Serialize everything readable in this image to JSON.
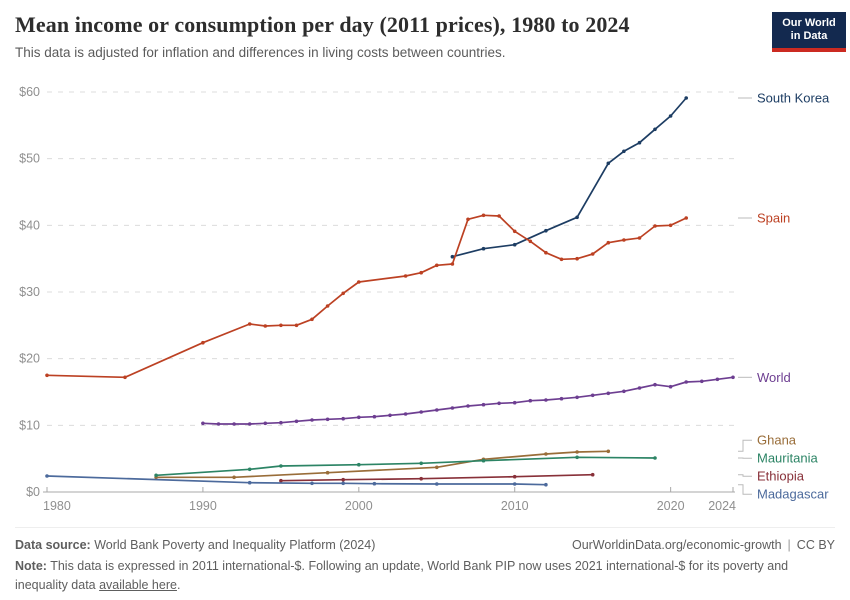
{
  "header": {
    "title": "Mean income or consumption per day (2011 prices), 1980 to 2024",
    "subtitle": "This data is adjusted for inflation and differences in living costs between countries.",
    "logo": {
      "line1": "Our World",
      "line2": "in Data",
      "bg_color": "#13294f",
      "stripe_color": "#cb2a21"
    }
  },
  "chart_data": {
    "type": "line",
    "title": "Mean income or consumption per day (2011 prices), 1980 to 2024",
    "xlabel": "",
    "ylabel": "",
    "xlim": [
      1980,
      2024
    ],
    "ylim": [
      0,
      60
    ],
    "x_ticks": [
      1980,
      1990,
      2000,
      2010,
      2020,
      2024
    ],
    "y_ticks": [
      0,
      10,
      20,
      30,
      40,
      50,
      60
    ],
    "y_tick_prefix": "$",
    "grid": "horizontal-dashed",
    "legend_position": "right-end-labels",
    "axis_color": "#a8a8a8",
    "grid_color": "#dcdcdc",
    "tick_label_color": "#8f8f8f",
    "series": [
      {
        "name": "South Korea",
        "color": "#1d3d63",
        "points": [
          [
            2006,
            35.3
          ],
          [
            2008,
            36.5
          ],
          [
            2010,
            37.1
          ],
          [
            2012,
            39.2
          ],
          [
            2014,
            41.2
          ],
          [
            2016,
            49.3
          ],
          [
            2017,
            51.1
          ],
          [
            2018,
            52.4
          ],
          [
            2019,
            54.4
          ],
          [
            2020,
            56.4
          ],
          [
            2021,
            59.1
          ]
        ]
      },
      {
        "name": "Spain",
        "color": "#bc4123",
        "points": [
          [
            1980,
            17.5
          ],
          [
            1985,
            17.2
          ],
          [
            1990,
            22.4
          ],
          [
            1993,
            25.2
          ],
          [
            1994,
            24.9
          ],
          [
            1995,
            25.0
          ],
          [
            1996,
            25.0
          ],
          [
            1997,
            25.9
          ],
          [
            1998,
            27.9
          ],
          [
            1999,
            29.8
          ],
          [
            2000,
            31.5
          ],
          [
            2003,
            32.4
          ],
          [
            2004,
            32.9
          ],
          [
            2005,
            34.0
          ],
          [
            2006,
            34.2
          ],
          [
            2007,
            40.9
          ],
          [
            2008,
            41.5
          ],
          [
            2009,
            41.4
          ],
          [
            2010,
            39.1
          ],
          [
            2011,
            37.6
          ],
          [
            2012,
            35.9
          ],
          [
            2013,
            34.9
          ],
          [
            2014,
            35.0
          ],
          [
            2015,
            35.7
          ],
          [
            2016,
            37.4
          ],
          [
            2017,
            37.8
          ],
          [
            2018,
            38.1
          ],
          [
            2019,
            39.9
          ],
          [
            2020,
            40.0
          ],
          [
            2021,
            41.1
          ]
        ]
      },
      {
        "name": "World",
        "color": "#6d3e91",
        "points": [
          [
            1990,
            10.3
          ],
          [
            1991,
            10.2
          ],
          [
            1992,
            10.2
          ],
          [
            1993,
            10.2
          ],
          [
            1994,
            10.3
          ],
          [
            1995,
            10.4
          ],
          [
            1996,
            10.6
          ],
          [
            1997,
            10.8
          ],
          [
            1998,
            10.9
          ],
          [
            1999,
            11.0
          ],
          [
            2000,
            11.2
          ],
          [
            2001,
            11.3
          ],
          [
            2002,
            11.5
          ],
          [
            2003,
            11.7
          ],
          [
            2004,
            12.0
          ],
          [
            2005,
            12.3
          ],
          [
            2006,
            12.6
          ],
          [
            2007,
            12.9
          ],
          [
            2008,
            13.1
          ],
          [
            2009,
            13.3
          ],
          [
            2010,
            13.4
          ],
          [
            2011,
            13.7
          ],
          [
            2012,
            13.8
          ],
          [
            2013,
            14.0
          ],
          [
            2014,
            14.2
          ],
          [
            2015,
            14.5
          ],
          [
            2016,
            14.8
          ],
          [
            2017,
            15.1
          ],
          [
            2018,
            15.6
          ],
          [
            2019,
            16.1
          ],
          [
            2020,
            15.8
          ],
          [
            2021,
            16.5
          ],
          [
            2022,
            16.6
          ],
          [
            2023,
            16.9
          ],
          [
            2024,
            17.2
          ]
        ]
      },
      {
        "name": "Ghana",
        "color": "#996d39",
        "points": [
          [
            1987,
            2.2
          ],
          [
            1992,
            2.2
          ],
          [
            1998,
            2.9
          ],
          [
            2005,
            3.7
          ],
          [
            2008,
            4.9
          ],
          [
            2012,
            5.7
          ],
          [
            2014,
            6.0
          ],
          [
            2016,
            6.1
          ]
        ]
      },
      {
        "name": "Mauritania",
        "color": "#2c8465",
        "points": [
          [
            1987,
            2.5
          ],
          [
            1993,
            3.4
          ],
          [
            1995,
            3.9
          ],
          [
            2000,
            4.1
          ],
          [
            2004,
            4.3
          ],
          [
            2008,
            4.7
          ],
          [
            2014,
            5.2
          ],
          [
            2019,
            5.1
          ]
        ]
      },
      {
        "name": "Ethiopia",
        "color": "#883039",
        "points": [
          [
            1995,
            1.7
          ],
          [
            1999,
            1.85
          ],
          [
            2004,
            2.0
          ],
          [
            2010,
            2.3
          ],
          [
            2015,
            2.6
          ]
        ]
      },
      {
        "name": "Madagascar",
        "color": "#4c6a9c",
        "points": [
          [
            1980,
            2.4
          ],
          [
            1993,
            1.4
          ],
          [
            1997,
            1.3
          ],
          [
            1999,
            1.3
          ],
          [
            2001,
            1.25
          ],
          [
            2005,
            1.2
          ],
          [
            2010,
            1.2
          ],
          [
            2012,
            1.1
          ]
        ]
      }
    ]
  },
  "footer": {
    "datasource_label": "Data source:",
    "datasource_text": "World Bank Poverty and Inequality Platform (2024)",
    "url_text": "OurWorldinData.org/economic-growth",
    "separator": "|",
    "license_text": "CC BY",
    "note_label": "Note:",
    "note_before_link": "This data is expressed in 2011 international-$. Following an update, World Bank PIP now uses 2021 international-$ for its poverty and inequality data",
    "note_link": "available here",
    "note_after_link": "."
  }
}
